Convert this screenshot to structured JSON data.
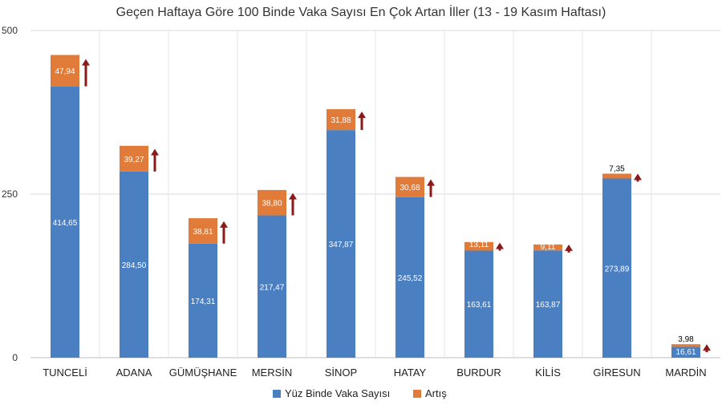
{
  "chart_data": {
    "type": "bar",
    "stacked": true,
    "title": "Geçen Haftaya Göre 100 Binde Vaka Sayısı En Çok Artan İller (13 - 19 Kasım Haftası)",
    "categories": [
      "TUNCELİ",
      "ADANA",
      "GÜMÜŞHANE",
      "MERSİN",
      "SİNOP",
      "HATAY",
      "BURDUR",
      "KİLİS",
      "GİRESUN",
      "MARDİN"
    ],
    "series": [
      {
        "name": "Yüz Binde Vaka Sayısı",
        "color": "#4a7fc1",
        "values": [
          414.65,
          284.5,
          174.31,
          217.47,
          347.87,
          245.52,
          163.61,
          163.87,
          273.89,
          16.61
        ],
        "labels": [
          "414,65",
          "284,50",
          "174,31",
          "217,47",
          "347,87",
          "245,52",
          "163,61",
          "163,87",
          "273,89",
          "16,61"
        ]
      },
      {
        "name": "Artış",
        "color": "#e07b39",
        "values": [
          47.94,
          39.27,
          38.81,
          38.8,
          31.88,
          30.68,
          13.11,
          9.11,
          7.35,
          3.98
        ],
        "labels": [
          "47,94",
          "39,27",
          "38,81",
          "38,80",
          "31,88",
          "30,68",
          "13,11",
          "9,11",
          "7,35",
          "3,98"
        ]
      }
    ],
    "yticks": [
      "0",
      "250",
      "500"
    ],
    "ylim": [
      0,
      500
    ],
    "grid": true,
    "legend_position": "bottom",
    "arrow_color": "#8b1a1a"
  }
}
